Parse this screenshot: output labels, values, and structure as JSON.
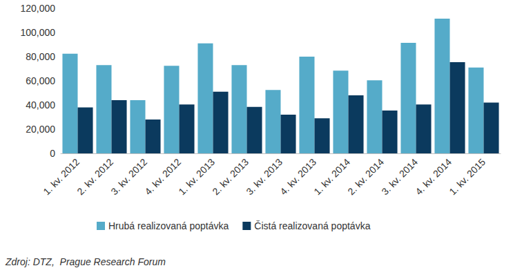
{
  "chart_data": {
    "type": "bar",
    "categories": [
      "1. kv. 2012",
      "2. kv. 2012",
      "3. kv. 2012",
      "4. kv. 2012",
      "1. kv. 2013",
      "2. kv. 2013",
      "3. kv. 2013",
      "4. kv. 2013",
      "1. kv. 2014",
      "2. kv. 2014",
      "3. kv. 2014",
      "4. kv. 2014",
      "1. kv. 2015"
    ],
    "series": [
      {
        "name": "Hrubá realizovaná poptávka",
        "color": "#55abc9",
        "values": [
          82500,
          73000,
          44000,
          72500,
          91000,
          73000,
          52500,
          80000,
          68500,
          60500,
          91500,
          111500,
          71000
        ]
      },
      {
        "name": "Čistá realizovaná poptávka",
        "color": "#0b3a5e",
        "values": [
          38000,
          44000,
          28000,
          40500,
          51000,
          38500,
          32000,
          29000,
          48000,
          35500,
          40500,
          75500,
          42000
        ]
      }
    ],
    "ylim": [
      0,
      120000
    ],
    "yticks": [
      0,
      {
        "value": 20000,
        "label": "20,000"
      },
      {
        "value": 40000,
        "label": "40,000"
      },
      {
        "value": 60000,
        "label": "60,000"
      },
      {
        "value": 80000,
        "label": "80,000"
      },
      {
        "value": 100000,
        "label": "100,000"
      },
      {
        "value": 120000,
        "label": "120,000"
      }
    ],
    "grid": false,
    "legend": "bottom",
    "source": "Zdroj: DTZ,  Prague Research Forum"
  }
}
